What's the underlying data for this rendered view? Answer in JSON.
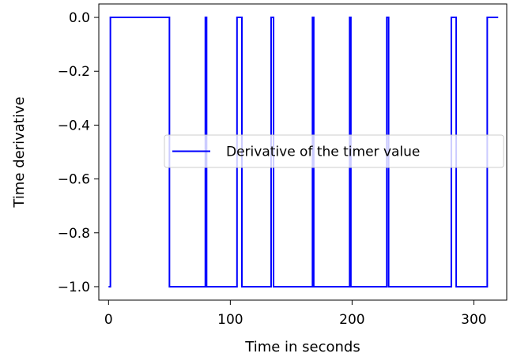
{
  "chart_data": {
    "type": "line",
    "xlabel": "Time in seconds",
    "ylabel": "Time derivative",
    "xlim": [
      -8,
      327
    ],
    "ylim": [
      -1.05,
      0.05
    ],
    "xticks": [
      0,
      100,
      200,
      300
    ],
    "yticks": [
      0.0,
      -0.2,
      -0.4,
      -0.6,
      -0.8,
      -1.0
    ],
    "xtick_labels": [
      "0",
      "100",
      "200",
      "300"
    ],
    "ytick_labels": [
      "0.0",
      "−0.2",
      "−0.4",
      "−0.6",
      "−0.8",
      "−1.0"
    ],
    "grid": false,
    "legend_position": "center-right",
    "series": [
      {
        "name": "Derivative of the timer value",
        "color": "#0000ff",
        "x": [
          0,
          1.5,
          1.5,
          50,
          50,
          79.5,
          79.5,
          80.5,
          80.5,
          105.5,
          105.5,
          109.5,
          109.5,
          133.5,
          133.5,
          135.5,
          135.5,
          167.5,
          167.5,
          168.5,
          168.5,
          198,
          198,
          199,
          199,
          228.5,
          228.5,
          230,
          230,
          281.5,
          281.5,
          285.5,
          285.5,
          311,
          311,
          320
        ],
        "y": [
          -1,
          -1,
          0,
          0,
          -1,
          -1,
          0,
          0,
          -1,
          -1,
          0,
          0,
          -1,
          -1,
          0,
          0,
          -1,
          -1,
          0,
          0,
          -1,
          -1,
          0,
          0,
          -1,
          -1,
          0,
          0,
          -1,
          -1,
          0,
          0,
          -1,
          -1,
          0,
          0
        ]
      }
    ]
  }
}
